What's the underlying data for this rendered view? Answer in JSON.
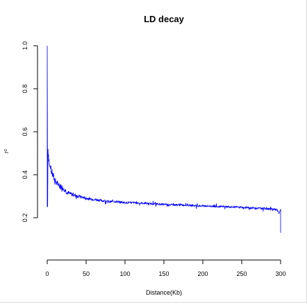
{
  "chart_data": {
    "type": "line",
    "title": "LD decay",
    "xlabel": "Distance(Kb)",
    "ylabel": "r²",
    "xlim": [
      0,
      300
    ],
    "ylim": [
      0.2,
      1.0
    ],
    "xticks": [
      "0",
      "50",
      "100",
      "150",
      "200",
      "250",
      "300"
    ],
    "yticks": [
      "0.2",
      "0.4",
      "0.6",
      "0.8",
      "1.0"
    ],
    "series_color": "#0000ff",
    "grid": false,
    "legend": "none",
    "series": [
      {
        "x": [
          0,
          0,
          0.5,
          1,
          2,
          3,
          5,
          8,
          10,
          15,
          20,
          25,
          30,
          40,
          50,
          60,
          70,
          80,
          90,
          100,
          110,
          120,
          130,
          140,
          150,
          160,
          170,
          180,
          190,
          200,
          210,
          220,
          230,
          240,
          250,
          260,
          270,
          280,
          290,
          295,
          298,
          300,
          300
        ],
        "y": [
          0.25,
          1.0,
          0.25,
          0.52,
          0.48,
          0.44,
          0.42,
          0.39,
          0.37,
          0.35,
          0.34,
          0.32,
          0.31,
          0.3,
          0.29,
          0.285,
          0.28,
          0.275,
          0.275,
          0.27,
          0.27,
          0.268,
          0.266,
          0.264,
          0.262,
          0.26,
          0.26,
          0.258,
          0.256,
          0.255,
          0.254,
          0.252,
          0.251,
          0.25,
          0.248,
          0.246,
          0.245,
          0.243,
          0.24,
          0.238,
          0.22,
          0.24,
          0.13
        ]
      }
    ]
  }
}
